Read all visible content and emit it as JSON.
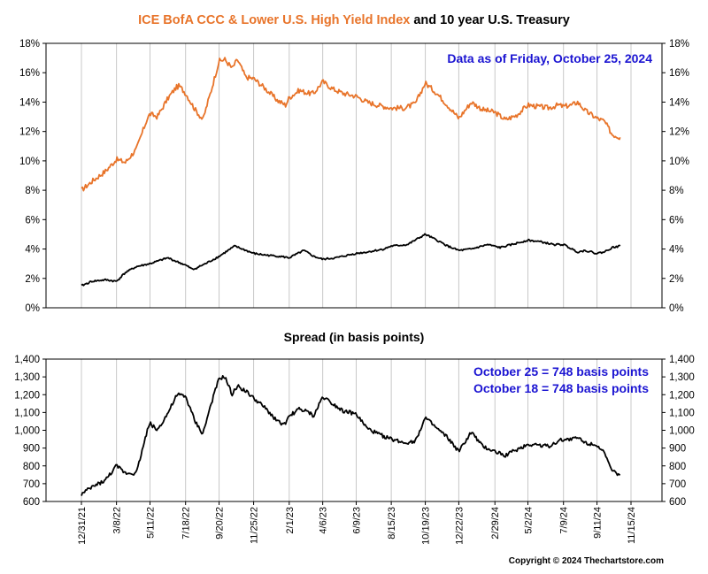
{
  "title": {
    "part1": "ICE BofA CCC & Lower U.S. High Yield Index",
    "part2": "and 10 year U.S. Treasury",
    "part1_color": "#E8742A",
    "part2_color": "#000000"
  },
  "annotation_top": "Data as of Friday, October 25, 2024",
  "spread_title": "Spread (in basis points)",
  "annotation_spread": [
    "October 25 = 748 basis points",
    "October 18 = 748 basis points"
  ],
  "annotation_color": "#1B14D2",
  "copyright": "Copyright © 2024 Thechartstore.com",
  "chart_data": [
    {
      "type": "line",
      "title": "ICE BofA CCC & Lower U.S. High Yield Index and 10 year U.S. Treasury",
      "x_axis": "date",
      "ylim": [
        0,
        18
      ],
      "yticks": [
        "0%",
        "2%",
        "4%",
        "6%",
        "8%",
        "10%",
        "12%",
        "14%",
        "16%",
        "18%"
      ],
      "ytick_values": [
        0,
        2,
        4,
        6,
        8,
        10,
        12,
        14,
        16,
        18
      ],
      "grid": "vertical",
      "series": [
        {
          "name": "ICE BofA CCC & Lower U.S. High Yield Index",
          "color": "#E8742A",
          "unit": "%",
          "x": [
            "2021-12-31",
            "2022-01-20",
            "2022-02-15",
            "2022-03-08",
            "2022-03-25",
            "2022-04-15",
            "2022-05-05",
            "2022-05-11",
            "2022-05-25",
            "2022-06-15",
            "2022-06-30",
            "2022-07-06",
            "2022-07-18",
            "2022-08-05",
            "2022-08-20",
            "2022-09-05",
            "2022-09-20",
            "2022-10-01",
            "2022-10-15",
            "2022-10-25",
            "2022-11-10",
            "2022-11-25",
            "2022-12-15",
            "2023-01-10",
            "2023-01-25",
            "2023-02-01",
            "2023-02-20",
            "2023-03-10",
            "2023-03-20",
            "2023-04-06",
            "2023-04-25",
            "2023-05-15",
            "2023-06-09",
            "2023-06-30",
            "2023-07-20",
            "2023-08-15",
            "2023-09-10",
            "2023-09-30",
            "2023-10-19",
            "2023-11-10",
            "2023-11-30",
            "2023-12-22",
            "2024-01-15",
            "2024-02-05",
            "2024-02-29",
            "2024-03-20",
            "2024-04-10",
            "2024-05-02",
            "2024-05-20",
            "2024-06-10",
            "2024-06-30",
            "2024-07-09",
            "2024-07-25",
            "2024-08-05",
            "2024-08-20",
            "2024-09-11",
            "2024-09-25",
            "2024-10-10",
            "2024-10-25"
          ],
          "values": [
            8.0,
            8.6,
            9.3,
            10.1,
            9.9,
            10.8,
            12.8,
            13.2,
            13.0,
            14.3,
            15.0,
            15.1,
            14.6,
            13.5,
            12.8,
            14.8,
            16.8,
            16.9,
            16.3,
            16.9,
            15.7,
            15.6,
            15.0,
            14.1,
            13.8,
            14.3,
            14.8,
            14.6,
            14.6,
            15.4,
            14.9,
            14.6,
            14.4,
            14.0,
            13.8,
            13.6,
            13.6,
            13.9,
            15.3,
            14.6,
            13.8,
            12.9,
            14.0,
            13.5,
            13.3,
            12.8,
            13.1,
            13.8,
            13.7,
            13.6,
            13.8,
            13.7,
            13.8,
            14.0,
            13.4,
            12.9,
            12.7,
            11.8,
            11.6
          ]
        },
        {
          "name": "10 year U.S. Treasury",
          "color": "#000000",
          "unit": "%",
          "x": [
            "2021-12-31",
            "2022-01-20",
            "2022-02-15",
            "2022-03-08",
            "2022-03-25",
            "2022-04-15",
            "2022-05-11",
            "2022-06-14",
            "2022-07-18",
            "2022-08-01",
            "2022-08-25",
            "2022-09-20",
            "2022-10-20",
            "2022-11-25",
            "2022-12-15",
            "2023-01-15",
            "2023-02-01",
            "2023-03-01",
            "2023-03-20",
            "2023-04-06",
            "2023-05-01",
            "2023-06-09",
            "2023-07-01",
            "2023-08-01",
            "2023-08-15",
            "2023-09-15",
            "2023-10-19",
            "2023-11-10",
            "2023-12-01",
            "2023-12-22",
            "2024-01-15",
            "2024-02-15",
            "2024-03-10",
            "2024-04-01",
            "2024-05-02",
            "2024-05-25",
            "2024-06-20",
            "2024-07-09",
            "2024-08-05",
            "2024-08-20",
            "2024-09-11",
            "2024-09-25",
            "2024-10-10",
            "2024-10-25"
          ],
          "values": [
            1.5,
            1.8,
            1.9,
            1.8,
            2.4,
            2.8,
            3.0,
            3.4,
            2.9,
            2.6,
            3.0,
            3.5,
            4.2,
            3.7,
            3.6,
            3.5,
            3.4,
            3.9,
            3.5,
            3.3,
            3.4,
            3.7,
            3.8,
            4.0,
            4.2,
            4.3,
            5.0,
            4.6,
            4.2,
            3.9,
            4.0,
            4.3,
            4.1,
            4.3,
            4.6,
            4.5,
            4.3,
            4.3,
            3.8,
            3.9,
            3.7,
            3.8,
            4.1,
            4.2
          ]
        }
      ]
    },
    {
      "type": "line",
      "title": "Spread (in basis points)",
      "x_axis": "date",
      "ylim": [
        600,
        1400
      ],
      "yticks": [
        "600",
        "700",
        "800",
        "900",
        "1,000",
        "1,100",
        "1,200",
        "1,300",
        "1,400"
      ],
      "ytick_values": [
        600,
        700,
        800,
        900,
        1000,
        1100,
        1200,
        1300,
        1400
      ],
      "grid": "vertical",
      "xticks": [
        "12/31/21",
        "3/8/22",
        "5/11/22",
        "7/18/22",
        "9/20/22",
        "11/25/22",
        "2/1/23",
        "4/6/23",
        "6/9/23",
        "8/15/23",
        "10/19/23",
        "12/22/23",
        "2/29/24",
        "5/2/24",
        "7/9/24",
        "9/11/24",
        "11/15/24"
      ],
      "xtick_dates": [
        "2021-12-31",
        "2022-03-08",
        "2022-05-11",
        "2022-07-18",
        "2022-09-20",
        "2022-11-25",
        "2023-02-01",
        "2023-04-06",
        "2023-06-09",
        "2023-08-15",
        "2023-10-19",
        "2023-12-22",
        "2024-02-29",
        "2024-05-02",
        "2024-07-09",
        "2024-09-11",
        "2024-11-15"
      ],
      "series": [
        {
          "name": "Spread",
          "color": "#000000",
          "unit": "basis points",
          "x": [
            "2021-12-31",
            "2022-01-20",
            "2022-02-15",
            "2022-03-08",
            "2022-03-25",
            "2022-04-15",
            "2022-05-05",
            "2022-05-11",
            "2022-05-25",
            "2022-06-15",
            "2022-06-30",
            "2022-07-06",
            "2022-07-18",
            "2022-08-05",
            "2022-08-20",
            "2022-09-05",
            "2022-09-20",
            "2022-10-01",
            "2022-10-15",
            "2022-10-25",
            "2022-11-10",
            "2022-11-25",
            "2022-12-15",
            "2023-01-10",
            "2023-01-25",
            "2023-02-01",
            "2023-02-20",
            "2023-03-10",
            "2023-03-20",
            "2023-04-06",
            "2023-04-25",
            "2023-05-15",
            "2023-06-09",
            "2023-06-30",
            "2023-07-20",
            "2023-08-15",
            "2023-09-10",
            "2023-09-30",
            "2023-10-19",
            "2023-11-10",
            "2023-11-30",
            "2023-12-22",
            "2024-01-15",
            "2024-02-05",
            "2024-02-29",
            "2024-03-20",
            "2024-04-10",
            "2024-05-02",
            "2024-05-20",
            "2024-06-10",
            "2024-06-30",
            "2024-07-09",
            "2024-07-25",
            "2024-08-05",
            "2024-08-20",
            "2024-09-11",
            "2024-09-25",
            "2024-10-10",
            "2024-10-25"
          ],
          "values": [
            640,
            680,
            720,
            800,
            760,
            760,
            990,
            1040,
            1000,
            1100,
            1190,
            1200,
            1190,
            1050,
            980,
            1150,
            1290,
            1300,
            1200,
            1250,
            1220,
            1180,
            1130,
            1050,
            1030,
            1080,
            1120,
            1100,
            1080,
            1190,
            1150,
            1110,
            1090,
            1010,
            980,
            950,
            930,
            940,
            1070,
            1010,
            960,
            880,
            990,
            910,
            880,
            860,
            890,
            920,
            920,
            910,
            940,
            950,
            950,
            960,
            930,
            920,
            870,
            770,
            748
          ]
        }
      ]
    }
  ]
}
